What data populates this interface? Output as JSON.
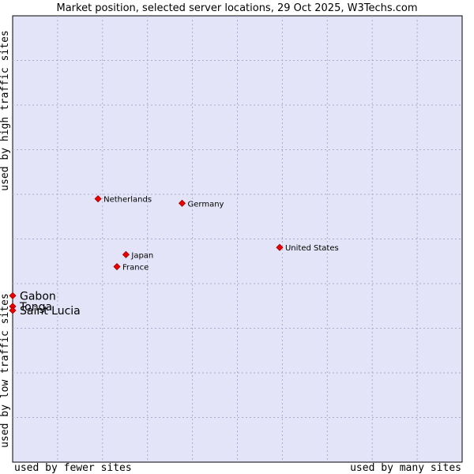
{
  "chart_data": {
    "type": "scatter",
    "title": "Market position, selected server locations, 29 Oct 2025, W3Techs.com",
    "xlabel_low": "used by fewer sites",
    "xlabel_high": "used by many sites",
    "ylabel_low": "used by low traffic sites",
    "ylabel_high": "used by high traffic sites",
    "xlim": [
      0,
      100
    ],
    "ylim": [
      0,
      100
    ],
    "grid": true,
    "colors": {
      "plot_bg": "#e4e4f8",
      "grid": "#aaaacc",
      "point": "#ee0000",
      "point_outline": "#990000"
    },
    "points": [
      {
        "label": "Netherlands",
        "x": 19.0,
        "y": 59.0,
        "emphasis": false
      },
      {
        "label": "Germany",
        "x": 37.7,
        "y": 58.0,
        "emphasis": false
      },
      {
        "label": "United States",
        "x": 59.4,
        "y": 48.1,
        "emphasis": false
      },
      {
        "label": "Japan",
        "x": 25.2,
        "y": 46.5,
        "emphasis": false
      },
      {
        "label": "France",
        "x": 23.2,
        "y": 43.8,
        "emphasis": false
      },
      {
        "label": "Gabon",
        "x": 0.0,
        "y": 37.3,
        "emphasis": true
      },
      {
        "label": "Tonga",
        "x": 0.0,
        "y": 34.9,
        "emphasis": true
      },
      {
        "label": "Saint Lucia",
        "x": 0.0,
        "y": 34.0,
        "emphasis": true
      }
    ]
  }
}
